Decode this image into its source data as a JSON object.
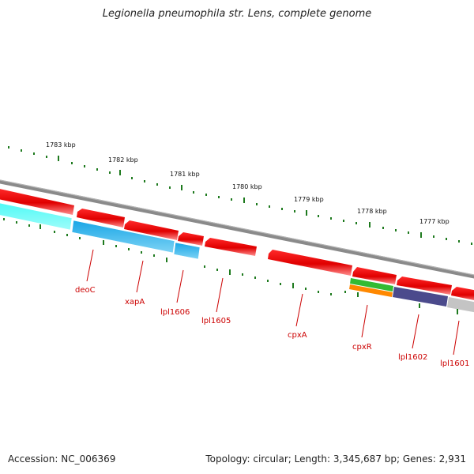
{
  "title": "Legionella pneumophila str. Lens, complete genome",
  "footer": {
    "accession": "Accession: NC_006369",
    "summary": "Topology: circular; Length: 3,345,687 bp; Genes: 2,931"
  },
  "ruler_labels": [
    "1783 kbp",
    "1782 kbp",
    "1781 kbp",
    "1780 kbp",
    "1779 kbp",
    "1778 kbp",
    "1777 kbp"
  ],
  "gene_labels": [
    "deoC",
    "xapA",
    "lpl1606",
    "lpl1605",
    "cpxA",
    "cpxR",
    "lpl1602",
    "lpl1601"
  ],
  "colors": {
    "backbone": "#8a8a8a",
    "cds": "#ee0000",
    "label": "#cc0000",
    "tick": "#1e7a1e",
    "cyan": "#2ff2ee",
    "blue": "#1fb0ea",
    "green": "#33bb33",
    "orange": "#ff8800",
    "purple": "#4b4a8c",
    "gray": "#c4c4c4"
  }
}
